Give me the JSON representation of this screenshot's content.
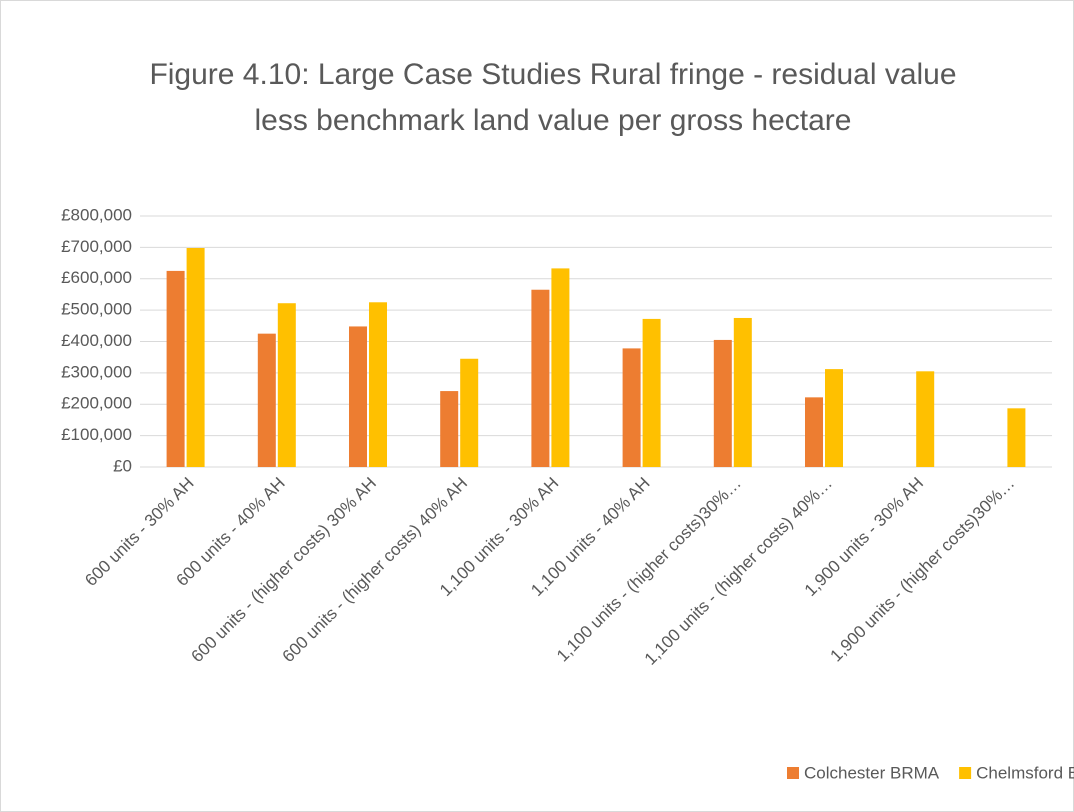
{
  "chart_data": {
    "type": "bar",
    "title": "Figure 4.10: Large Case Studies Rural fringe - residual value less benchmark land value per gross hectare",
    "categories": [
      "600 units - 30% AH",
      "600 units - 40% AH",
      "600 units - (higher costs) 30% AH",
      "600 units - (higher costs) 40% AH",
      "1,100 units - 30% AH",
      "1,100 units - 40% AH",
      "1,100 units - (higher costs)30%…",
      "1,100 units - (higher costs) 40%…",
      "1,900 units - 30% AH",
      "1,900 units - (higher costs)30%…"
    ],
    "series": [
      {
        "name": "Colchester BRMA",
        "color": "#ed7d31",
        "values": [
          625000,
          425000,
          448000,
          242000,
          565000,
          378000,
          405000,
          222000,
          null,
          null
        ]
      },
      {
        "name": "Chelmsford BRMA",
        "color": "#ffc000",
        "values": [
          698000,
          522000,
          525000,
          345000,
          633000,
          472000,
          475000,
          312000,
          305000,
          187000
        ]
      }
    ],
    "ylim": [
      0,
      800000
    ],
    "yticks": [
      {
        "value": 0,
        "label": "£0"
      },
      {
        "value": 100000,
        "label": "£100,000"
      },
      {
        "value": 200000,
        "label": "£200,000"
      },
      {
        "value": 300000,
        "label": "£300,000"
      },
      {
        "value": 400000,
        "label": "£400,000"
      },
      {
        "value": 500000,
        "label": "£500,000"
      },
      {
        "value": 600000,
        "label": "£600,000"
      },
      {
        "value": 700000,
        "label": "£700,000"
      },
      {
        "value": 800000,
        "label": "£800,000"
      }
    ],
    "grid": true,
    "legend": "bottom"
  }
}
